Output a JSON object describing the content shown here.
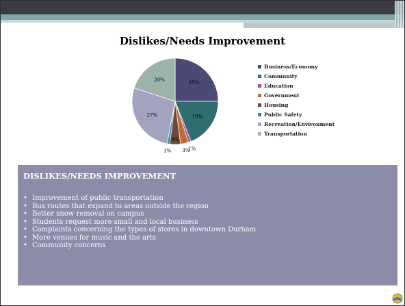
{
  "chart_data": {
    "type": "pie",
    "title": "Dislikes/Needs Improvement",
    "categories": [
      "Business/Economy",
      "Community",
      "Education",
      "Government",
      "Housing",
      "Public Safety",
      "Recreation/Environment",
      "Transportation"
    ],
    "values": [
      25,
      19,
      1,
      3,
      4,
      1,
      27,
      20
    ],
    "data_labels": [
      "25%",
      "19%",
      "1%",
      "3%",
      "4%",
      "1%",
      "27%",
      "20%"
    ],
    "colors": [
      "#4a4a74",
      "#2e6e6e",
      "#a34e9e",
      "#c56a2f",
      "#6b4a3a",
      "#2f8fb0",
      "#a3a3bf",
      "#9cb2ab"
    ],
    "legend_position": "right"
  },
  "section": {
    "heading": "DISLIKES/NEEDS IMPROVEMENT",
    "bullets": [
      "Improvement of public transportation",
      "Bus routes that expand to areas outside the region",
      "Better snow removal on campus",
      "Students request more small and local business",
      "Complaints concerning the types of stores in downtown Durham",
      "More venues for music and the arts",
      "Community concerns"
    ]
  },
  "decor": {
    "topbar_color": "#3b3b44",
    "accent_teal": "#7fa8a3",
    "textbox_color": "#8a8caa",
    "logo_icon": "globe-logo-icon"
  }
}
